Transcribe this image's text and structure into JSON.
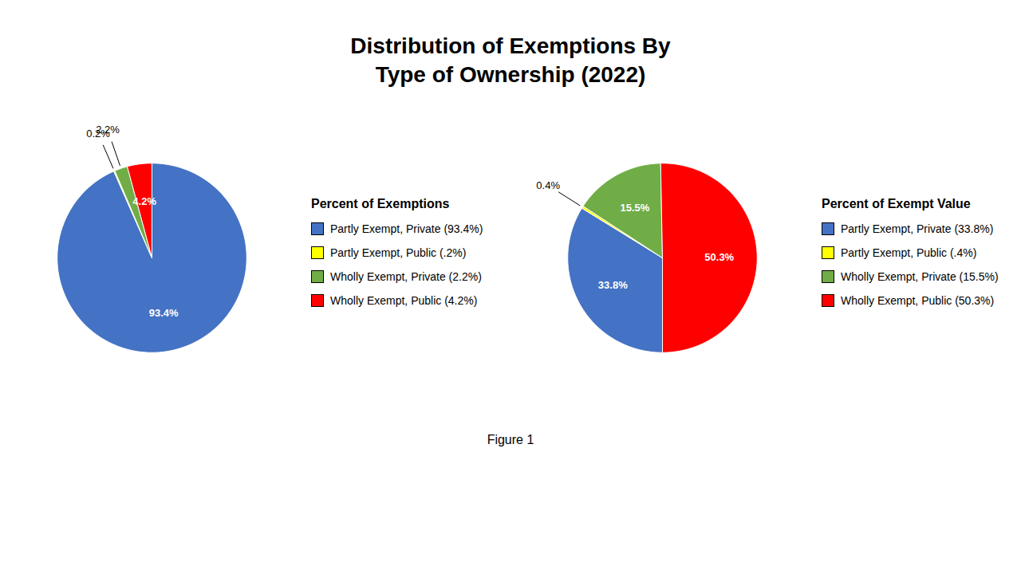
{
  "title": "Distribution of Exemptions By\nType of Ownership (2022)",
  "caption": "Figure 1",
  "chart_data": [
    {
      "type": "pie",
      "title": "Percent of Exemptions",
      "categories": [
        "Partly Exempt, Private (93.4%)",
        "Partly Exempt, Public (.2%)",
        "Wholly Exempt, Private (2.2%)",
        "Wholly Exempt, Public (4.2%)"
      ],
      "values": [
        93.4,
        0.2,
        2.2,
        4.2
      ],
      "value_labels": [
        "93.4%",
        "0.2%",
        "2.2%",
        "4.2%"
      ],
      "colors": [
        "#4472C4",
        "#FFFF00",
        "#70AD47",
        "#FF0000"
      ],
      "data_labels": true,
      "legend": "right"
    },
    {
      "type": "pie",
      "title": "Percent of Exempt Value",
      "categories": [
        "Partly Exempt, Private (33.8%)",
        "Partly Exempt, Public (.4%)",
        "Wholly Exempt, Private (15.5%)",
        "Wholly Exempt, Public (50.3%)"
      ],
      "values": [
        33.8,
        0.4,
        15.5,
        50.3
      ],
      "value_labels": [
        "33.8%",
        "0.4%",
        "15.5%",
        "50.3%"
      ],
      "colors": [
        "#4472C4",
        "#FFFF00",
        "#70AD47",
        "#FF0000"
      ],
      "data_labels": true,
      "legend": "right"
    }
  ]
}
